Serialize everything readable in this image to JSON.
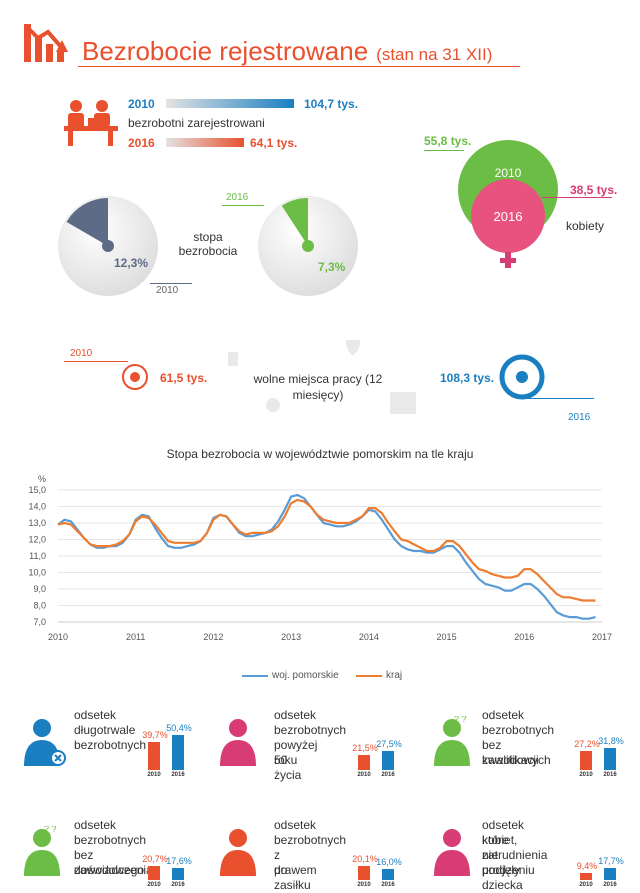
{
  "header": {
    "title": "Bezrobocie rejestrowane",
    "subtitle": "(stan na 31 XII)"
  },
  "registered": {
    "y2010": "2010",
    "v2010": "104,7 tys.",
    "label": "bezrobotni zarejestrowani",
    "y2016": "2016",
    "v2016": "64,1 tys."
  },
  "rate": {
    "v2010": "12,3%",
    "y2010": "2010",
    "label": "stopa bezrobocia",
    "y2016": "2016",
    "v2016": "7,3%",
    "share2010": 0.123,
    "share2016": 0.073
  },
  "women": {
    "v2010": "55,8 tys.",
    "y2010": "2010",
    "y2016": "2016",
    "v2016": "38,5 tys.",
    "label": "kobiety"
  },
  "vacancies": {
    "y2010": "2010",
    "v2010": "61,5 tys.",
    "label": "wolne miejsca pracy (12 miesięcy)",
    "v2016": "108,3 tys.",
    "y2016": "2016"
  },
  "chart_data": {
    "type": "line",
    "title": "Stopa bezrobocia w województwie pomorskim na tle kraju",
    "ylabel": "%",
    "ylim": [
      7.0,
      15.0
    ],
    "yticks": [
      "15,0",
      "14,0",
      "13,0",
      "12,0",
      "11,0",
      "10,0",
      "9,0",
      "8,0",
      "7,0"
    ],
    "xticks": [
      "2010",
      "2011",
      "2012",
      "2013",
      "2014",
      "2015",
      "2016",
      "2017"
    ],
    "legend_position": "bottom",
    "x": [
      2010.0,
      2010.083,
      2010.167,
      2010.25,
      2010.333,
      2010.417,
      2010.5,
      2010.583,
      2010.667,
      2010.75,
      2010.833,
      2010.917,
      2011.0,
      2011.083,
      2011.167,
      2011.25,
      2011.333,
      2011.417,
      2011.5,
      2011.583,
      2011.667,
      2011.75,
      2011.833,
      2011.917,
      2012.0,
      2012.083,
      2012.167,
      2012.25,
      2012.333,
      2012.417,
      2012.5,
      2012.583,
      2012.667,
      2012.75,
      2012.833,
      2012.917,
      2013.0,
      2013.083,
      2013.167,
      2013.25,
      2013.333,
      2013.417,
      2013.5,
      2013.583,
      2013.667,
      2013.75,
      2013.833,
      2013.917,
      2014.0,
      2014.083,
      2014.167,
      2014.25,
      2014.333,
      2014.417,
      2014.5,
      2014.583,
      2014.667,
      2014.75,
      2014.833,
      2014.917,
      2015.0,
      2015.083,
      2015.167,
      2015.25,
      2015.333,
      2015.417,
      2015.5,
      2015.583,
      2015.667,
      2015.75,
      2015.833,
      2015.917,
      2016.0,
      2016.083,
      2016.167,
      2016.25,
      2016.333,
      2016.417,
      2016.5,
      2016.583,
      2016.667,
      2016.75,
      2016.833,
      2016.917
    ],
    "series": [
      {
        "name": "woj. pomorskie",
        "color": "#5b9bd5",
        "values": [
          12.9,
          13.2,
          13.1,
          12.6,
          12.1,
          11.7,
          11.5,
          11.5,
          11.6,
          11.6,
          11.8,
          12.3,
          13.2,
          13.5,
          13.4,
          12.7,
          12.1,
          11.6,
          11.5,
          11.5,
          11.6,
          11.7,
          11.9,
          12.4,
          13.3,
          13.5,
          13.4,
          12.9,
          12.4,
          12.2,
          12.2,
          12.3,
          12.4,
          12.6,
          13.1,
          13.8,
          14.6,
          14.7,
          14.5,
          14.0,
          13.5,
          13.0,
          12.9,
          12.8,
          12.8,
          12.9,
          13.1,
          13.4,
          13.8,
          13.7,
          13.2,
          12.6,
          12.0,
          11.6,
          11.4,
          11.3,
          11.3,
          11.2,
          11.2,
          11.4,
          11.6,
          11.6,
          11.2,
          10.6,
          10.1,
          9.6,
          9.3,
          9.2,
          9.1,
          8.9,
          8.9,
          9.1,
          9.3,
          9.3,
          9.0,
          8.6,
          8.1,
          7.6,
          7.4,
          7.3,
          7.3,
          7.2,
          7.2,
          7.3
        ]
      },
      {
        "name": "kraj",
        "color": "#ed7d31",
        "values": [
          12.9,
          13.0,
          12.9,
          12.5,
          12.1,
          11.7,
          11.6,
          11.6,
          11.6,
          11.7,
          11.9,
          12.3,
          13.1,
          13.4,
          13.3,
          12.9,
          12.4,
          11.9,
          11.8,
          11.8,
          11.8,
          11.8,
          11.9,
          12.4,
          13.2,
          13.5,
          13.4,
          12.9,
          12.5,
          12.3,
          12.4,
          12.4,
          12.4,
          12.5,
          12.8,
          13.4,
          14.2,
          14.4,
          14.3,
          14.0,
          13.5,
          13.2,
          13.1,
          13.0,
          13.0,
          13.0,
          13.2,
          13.4,
          13.9,
          13.9,
          13.6,
          13.0,
          12.5,
          12.0,
          11.9,
          11.7,
          11.5,
          11.3,
          11.3,
          11.5,
          11.9,
          11.9,
          11.6,
          11.1,
          10.6,
          10.2,
          10.1,
          9.9,
          9.8,
          9.7,
          9.7,
          9.8,
          10.2,
          10.2,
          9.9,
          9.5,
          9.1,
          8.7,
          8.5,
          8.5,
          8.4,
          8.3,
          8.3,
          8.3
        ]
      }
    ]
  },
  "stats": [
    {
      "text": [
        "odsetek",
        "długotrwale",
        "bezrobotnych"
      ],
      "v2010": "39,7%",
      "v2016": "50,4%",
      "n2010": 39.7,
      "n2016": 50.4,
      "y2010": "2010",
      "y2016": "2016"
    },
    {
      "text": [
        "odsetek",
        "bezrobotnych",
        "powyżej 50",
        "roku życia"
      ],
      "v2010": "21,5%",
      "v2016": "27,5%",
      "n2010": 21.5,
      "n2016": 27.5,
      "y2010": "2010",
      "y2016": "2016"
    },
    {
      "text": [
        "odsetek",
        "bezrobotnych",
        "bez kwalifikacji",
        "zawodowych"
      ],
      "v2010": "27,2%",
      "v2016": "31,8%",
      "n2010": 27.2,
      "n2016": 31.8,
      "y2010": "2010",
      "y2016": "2016"
    },
    {
      "text": [
        "odsetek",
        "bezrobotnych",
        "bez doświadczenia",
        "zawodowego"
      ],
      "v2010": "20,7%",
      "v2016": "17,6%",
      "n2010": 20.7,
      "n2016": 17.6,
      "y2010": "2010",
      "y2016": "2016"
    },
    {
      "text": [
        "odsetek",
        "bezrobotnych",
        "z prawem",
        "do zasiłku"
      ],
      "v2010": "20,1%",
      "v2016": "16,0%",
      "n2010": 20.1,
      "n2016": 16.0,
      "y2010": "2010",
      "y2016": "2016"
    },
    {
      "text": [
        "odsetek kobiet,",
        "które nie podjęły",
        "zatrudnienia po",
        "urodzeniu dziecka"
      ],
      "v2010": "9,4%",
      "v2016": "17,7%",
      "n2010": 9.4,
      "n2016": 17.7,
      "y2010": "2010",
      "y2016": "2016"
    }
  ],
  "colors": {
    "orange": "#e8502e",
    "blue": "#1a7fc1",
    "green": "#6cbd45",
    "pink": "#d83c74",
    "slate": "#5d6b86"
  }
}
